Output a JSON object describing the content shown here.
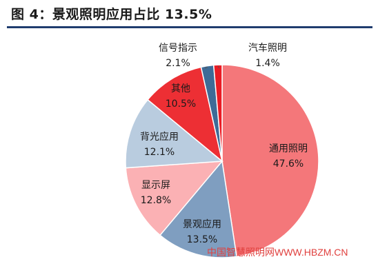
{
  "figure": {
    "title": "图 4：景观照明应用占比 13.5%"
  },
  "watermark": "中国智慧照明网WWW.HBZM.CN",
  "chart_data": {
    "type": "pie",
    "slices": [
      {
        "name": "通用照明",
        "value": 47.6,
        "value_label": "47.6%",
        "color": "#f4777a"
      },
      {
        "name": "景观应用",
        "value": 13.5,
        "value_label": "13.5%",
        "color": "#7f9ec0"
      },
      {
        "name": "显示屏",
        "value": 12.8,
        "value_label": "12.8%",
        "color": "#fbb1b4"
      },
      {
        "name": "背光应用",
        "value": 12.1,
        "value_label": "12.1%",
        "color": "#b9ccdf"
      },
      {
        "name": "其他",
        "value": 10.5,
        "value_label": "10.5%",
        "color": "#ed2f34"
      },
      {
        "name": "信号指示",
        "value": 2.1,
        "value_label": "2.1%",
        "color": "#3e6b97"
      },
      {
        "name": "汽车照明",
        "value": 1.4,
        "value_label": "1.4%",
        "color": "#ea1b24"
      }
    ],
    "start_angle_deg": 0,
    "direction": "clockwise"
  }
}
